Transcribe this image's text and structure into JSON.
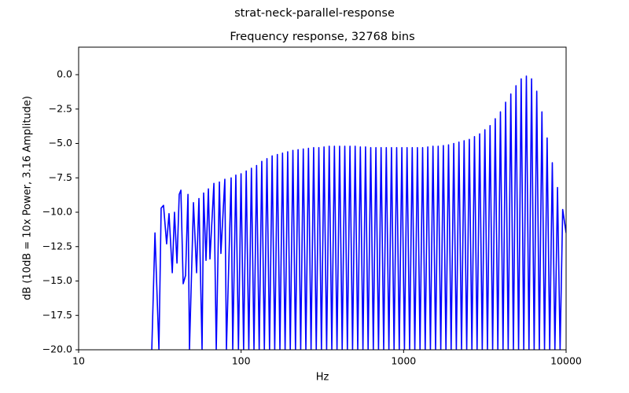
{
  "chart_data": {
    "type": "line",
    "suptitle": "strat-neck-parallel-response",
    "title": "Frequency response, 32768 bins",
    "xlabel": "Hz",
    "ylabel": "dB (10dB = 10x Power, 3.16 Amplitude)",
    "xscale": "log",
    "xlim": [
      10,
      10000
    ],
    "xticks": [
      10,
      100,
      1000,
      10000
    ],
    "ylim": [
      -20,
      2
    ],
    "yticks": [
      {
        "value": -20,
        "label": "−20.0"
      },
      {
        "value": -17.5,
        "label": "−17.5"
      },
      {
        "value": -15,
        "label": "−15.0"
      },
      {
        "value": -12.5,
        "label": "−12.5"
      },
      {
        "value": -10,
        "label": "−10.0"
      },
      {
        "value": -7.5,
        "label": "−7.5"
      },
      {
        "value": -5,
        "label": "−5.0"
      },
      {
        "value": -2.5,
        "label": "−2.5"
      },
      {
        "value": 0,
        "label": "0.0"
      }
    ],
    "x": [
      28.2,
      29.5,
      31.2,
      32.2,
      33.3,
      34.8,
      36.0,
      37.7,
      38.9,
      40.3,
      41.6,
      42.6,
      44.0,
      45.5,
      47.1,
      48.1,
      50.9,
      53.2,
      55.0,
      57.5,
      58.8,
      60.8,
      62.9,
      64.3,
      68.0,
      70.3,
      73.5,
      75.1,
      79.4,
      81.2,
      86.8,
      88.8,
      92.8,
      96.3,
      99.9,
      103.6,
      107.5,
      111.5,
      115.7,
      120.0,
      124.5,
      129.2,
      134.0,
      139.0,
      144.2,
      149.6,
      155.2,
      161.0,
      167.1,
      173.3,
      179.8,
      186.5,
      193.5,
      200.7,
      208.3,
      216.1,
      224.2,
      232.6,
      241.3,
      250.3,
      259.7,
      269.4,
      279.5,
      290.0,
      300.8,
      312.1,
      323.8,
      335.9,
      348.5,
      361.5,
      375.1,
      389.1,
      403.7,
      418.8,
      434.5,
      450.8,
      467.6,
      485.1,
      503.3,
      522.1,
      541.7,
      562.0,
      583.0,
      604.8,
      627.5,
      651.0,
      675.4,
      700.7,
      726.9,
      754.1,
      782.4,
      811.7,
      842.1,
      873.6,
      906.3,
      940.2,
      975.5,
      1011.9,
      1049.9,
      1089,
      1130,
      1172,
      1216,
      1262,
      1309,
      1358,
      1409,
      1462,
      1516,
      1573,
      1632,
      1693,
      1756,
      1822,
      1890,
      1961,
      2035,
      2111,
      2190,
      2272,
      2357,
      2445,
      2537,
      2632,
      2730,
      2832,
      2938,
      3048,
      3163,
      3281,
      3404,
      3531,
      3664,
      3801,
      3943,
      4091,
      4244,
      4403,
      4568,
      4739,
      4916,
      5100,
      5291,
      5489,
      5695,
      5908,
      6130,
      6359,
      6597,
      6844,
      7100,
      7366,
      7642,
      7928,
      8225,
      8533,
      8853,
      9184,
      9528,
      10000
    ],
    "series": [
      {
        "color": "#0000ff",
        "values": [
          -20,
          -11.5,
          -20,
          -9.7,
          -9.5,
          -12.3,
          -10.1,
          -14.4,
          -10.0,
          -13.7,
          -8.7,
          -8.4,
          -15.2,
          -14.6,
          -8.7,
          -20,
          -9.3,
          -14.4,
          -9.0,
          -20,
          -8.6,
          -13.5,
          -8.3,
          -13.4,
          -7.9,
          -20,
          -7.8,
          -13.0,
          -7.6,
          -20,
          -7.5,
          -20,
          -7.3,
          -20,
          -7.2,
          -20,
          -7.0,
          -20,
          -6.8,
          -20,
          -6.6,
          -20,
          -6.3,
          -20,
          -6.1,
          -20,
          -5.9,
          -20,
          -5.8,
          -20,
          -5.7,
          -20,
          -5.6,
          -20,
          -5.5,
          -20,
          -5.45,
          -20,
          -5.4,
          -20,
          -5.35,
          -20,
          -5.3,
          -20,
          -5.3,
          -20,
          -5.25,
          -20,
          -5.2,
          -20,
          -5.2,
          -20,
          -5.2,
          -20,
          -5.2,
          -20,
          -5.2,
          -20,
          -5.2,
          -20,
          -5.25,
          -20,
          -5.25,
          -20,
          -5.3,
          -20,
          -5.3,
          -20,
          -5.3,
          -20,
          -5.3,
          -20,
          -5.3,
          -20,
          -5.3,
          -20,
          -5.3,
          -20,
          -5.3,
          -20,
          -5.3,
          -20,
          -5.3,
          -20,
          -5.3,
          -20,
          -5.25,
          -20,
          -5.2,
          -20,
          -5.2,
          -20,
          -5.15,
          -20,
          -5.1,
          -20,
          -5.0,
          -20,
          -4.9,
          -20,
          -4.8,
          -20,
          -4.7,
          -20,
          -4.5,
          -20,
          -4.3,
          -20,
          -4.0,
          -20,
          -3.7,
          -20,
          -3.2,
          -20,
          -2.7,
          -20,
          -2.0,
          -20,
          -1.4,
          -20,
          -0.8,
          -20,
          -0.3,
          -20,
          -0.1,
          -20,
          -0.3,
          -20,
          -1.2,
          -20,
          -2.7,
          -20,
          -4.6,
          -20,
          -6.4,
          -20,
          -8.2,
          -20,
          -9.8,
          -11.5
        ]
      }
    ]
  }
}
